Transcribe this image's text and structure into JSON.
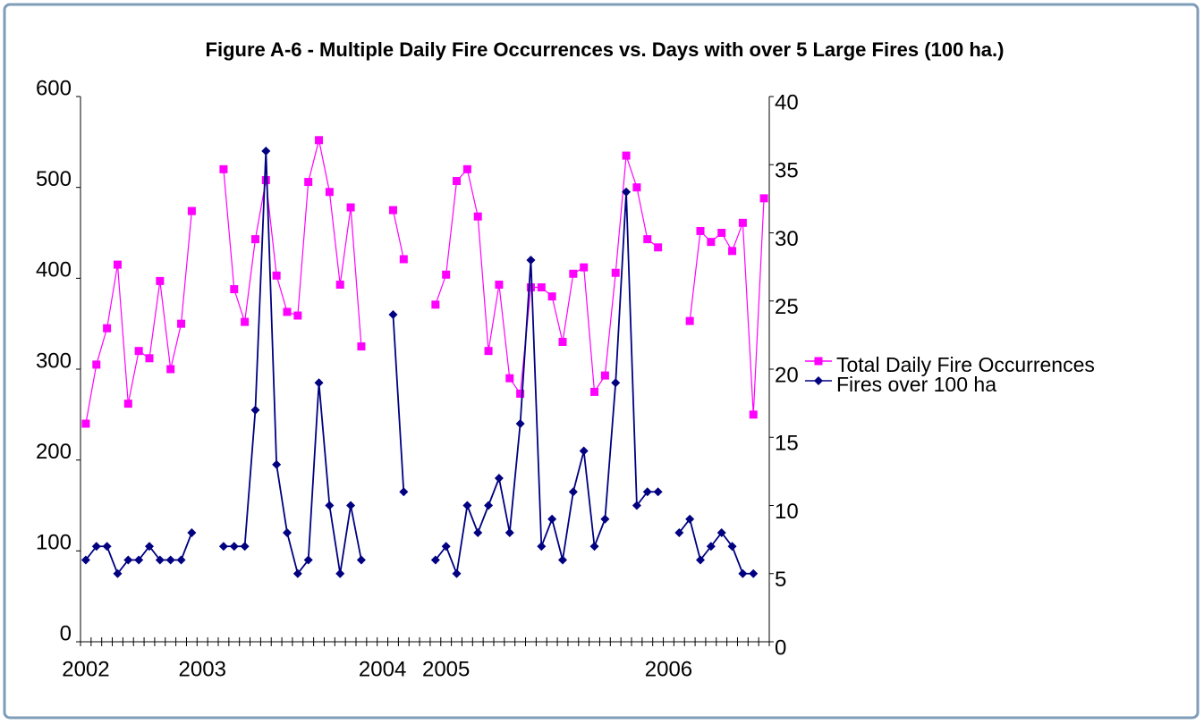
{
  "chart_data": {
    "type": "line",
    "title": "Figure A-6 - Multiple Daily Fire Occurrences vs. Days with over 5 Large Fires (100 ha.)",
    "categories": [
      "2002",
      null,
      null,
      null,
      null,
      null,
      null,
      null,
      null,
      null,
      null,
      "2003",
      null,
      null,
      null,
      null,
      null,
      null,
      null,
      null,
      null,
      null,
      null,
      null,
      null,
      null,
      null,
      null,
      "2004",
      null,
      null,
      null,
      null,
      null,
      "2005",
      null,
      null,
      null,
      null,
      null,
      null,
      null,
      null,
      null,
      null,
      null,
      null,
      null,
      null,
      null,
      null,
      null,
      null,
      null,
      null,
      "2006",
      null,
      null,
      null,
      null,
      null,
      null,
      null,
      null,
      null
    ],
    "series": [
      {
        "name": "Total Daily Fire Occurrences",
        "color": "#ff00ff",
        "marker": "square",
        "values": [
          240,
          305,
          345,
          415,
          262,
          320,
          312,
          397,
          300,
          350,
          474,
          null,
          null,
          520,
          388,
          352,
          443,
          508,
          403,
          363,
          359,
          506,
          552,
          495,
          393,
          478,
          325,
          null,
          null,
          475,
          421,
          null,
          null,
          371,
          404,
          507,
          520,
          468,
          320,
          393,
          290,
          273,
          390,
          390,
          380,
          330,
          405,
          412,
          275,
          293,
          406,
          535,
          500,
          443,
          434,
          null,
          null,
          353,
          452,
          440,
          450,
          430,
          461,
          250,
          488
        ]
      },
      {
        "name": "Fires over 100 ha",
        "color": "#000080",
        "marker": "diamond",
        "axis": "y2",
        "values": [
          6,
          7,
          7,
          5,
          6,
          6,
          7,
          6,
          6,
          6,
          8,
          null,
          null,
          7,
          7,
          7,
          17,
          36,
          13,
          8,
          5,
          6,
          19,
          10,
          5,
          10,
          6,
          null,
          null,
          24,
          11,
          null,
          null,
          6,
          7,
          5,
          10,
          8,
          10,
          12,
          8,
          16,
          28,
          7,
          9,
          6,
          11,
          14,
          7,
          9,
          19,
          33,
          10,
          11,
          11,
          null,
          8,
          9,
          6,
          7,
          8,
          7,
          5,
          5,
          null
        ]
      }
    ],
    "ylim": [
      0,
      600
    ],
    "yticks": [
      0,
      100,
      200,
      300,
      400,
      500,
      600
    ],
    "y2lim": [
      0,
      40
    ],
    "y2ticks": [
      0,
      5,
      10,
      15,
      20,
      25,
      30,
      35,
      40
    ],
    "legend": "right"
  }
}
